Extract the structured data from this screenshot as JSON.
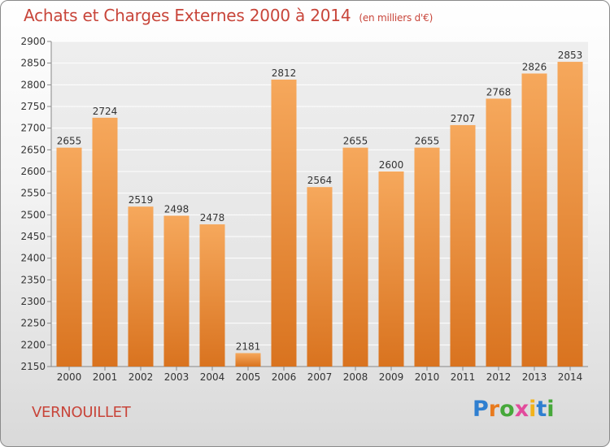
{
  "header": {
    "title": "Achats et Charges Externes 2000 à 2014",
    "unit": "(en milliers d'€)"
  },
  "footer": {
    "city": "VERNOUILLET",
    "logo_letters": [
      "P",
      "r",
      "o",
      "x",
      "i",
      "t",
      "i"
    ],
    "logo_colors": [
      "#2f7fd0",
      "#e87a1e",
      "#46a83a",
      "#e24a9c",
      "#f2b21a",
      "#2f7fd0",
      "#46a83a"
    ]
  },
  "colors": {
    "bar_light": "#f6a85c",
    "bar_dark": "#d9731f",
    "grid": "#ffffff",
    "title": "#c8453a"
  },
  "chart_data": {
    "type": "bar",
    "title": "Achats et Charges Externes 2000 à 2014",
    "unit": "(en milliers d'€)",
    "categories": [
      "2000",
      "2001",
      "2002",
      "2003",
      "2004",
      "2005",
      "2006",
      "2007",
      "2008",
      "2009",
      "2010",
      "2011",
      "2012",
      "2013",
      "2014"
    ],
    "values": [
      2655,
      2724,
      2519,
      2498,
      2478,
      2181,
      2812,
      2564,
      2655,
      2600,
      2655,
      2707,
      2768,
      2826,
      2853
    ],
    "ylim": [
      2150,
      2900
    ],
    "yticks": [
      2150,
      2200,
      2250,
      2300,
      2350,
      2400,
      2450,
      2500,
      2550,
      2600,
      2650,
      2700,
      2750,
      2800,
      2850,
      2900
    ],
    "grid": true,
    "data_labels": true
  }
}
